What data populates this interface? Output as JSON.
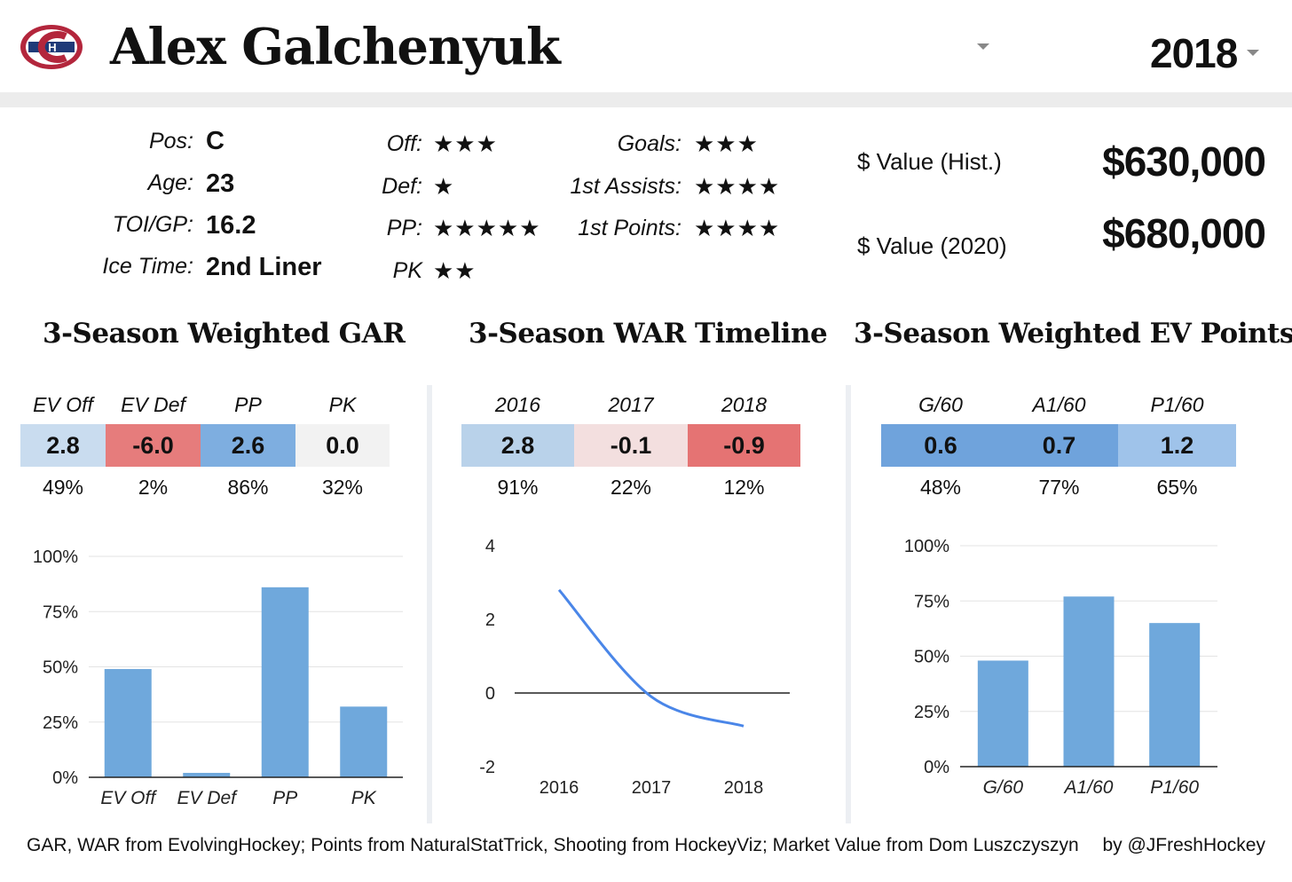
{
  "header": {
    "player_name": "Alex Galchenyuk",
    "season": "2018",
    "team_logo": "habs-logo"
  },
  "profile": {
    "pos_label": "Pos:",
    "pos": "C",
    "age_label": "Age:",
    "age": "23",
    "toi_label": "TOI/GP:",
    "toi": "16.2",
    "ice_label": "Ice Time:",
    "ice": "2nd Liner"
  },
  "ratings": {
    "off_label": "Off:",
    "off": "★★★",
    "def_label": "Def:",
    "def": "★",
    "pp_label": "PP:",
    "pp": "★★★★★",
    "pk_label": "PK",
    "pk": "★★",
    "goals_label": "Goals:",
    "goals": "★★★",
    "assists_label": "1st Assists:",
    "assists": "★★★★",
    "points_label": "1st Points:",
    "points": "★★★★"
  },
  "value": {
    "hist_label": "$ Value (Hist.)",
    "hist": "$630,000",
    "v2020_label": "$ Value (2020)",
    "v2020": "$680,000"
  },
  "sections": {
    "gar_title": "3-Season Weighted GAR",
    "war_title": "3-Season WAR Timeline",
    "ev_title": "3-Season Weighted EV Points"
  },
  "gar_table": {
    "cols": [
      {
        "head": "EV Off",
        "value": "2.8",
        "pct": "49%",
        "color": "#c9dcef"
      },
      {
        "head": "EV Def",
        "value": "-6.0",
        "pct": "2%",
        "color": "#e67c7c"
      },
      {
        "head": "PP",
        "value": "2.6",
        "pct": "86%",
        "color": "#7eaee0"
      },
      {
        "head": "PK",
        "value": "0.0",
        "pct": "32%",
        "color": "#f2f2f2"
      }
    ]
  },
  "war_table": {
    "cols": [
      {
        "head": "2016",
        "value": "2.8",
        "pct": "91%",
        "color": "#b9d2ea"
      },
      {
        "head": "2017",
        "value": "-0.1",
        "pct": "22%",
        "color": "#f3dfdf"
      },
      {
        "head": "2018",
        "value": "-0.9",
        "pct": "12%",
        "color": "#e57373"
      }
    ]
  },
  "ev_table": {
    "cols": [
      {
        "head": "G/60",
        "value": "0.6",
        "pct": "48%",
        "color": "#6fa3dc"
      },
      {
        "head": "A1/60",
        "value": "0.7",
        "pct": "77%",
        "color": "#6fa3dc"
      },
      {
        "head": "P1/60",
        "value": "1.2",
        "pct": "65%",
        "color": "#9fc3ea"
      }
    ]
  },
  "chart_data": [
    {
      "type": "bar",
      "categories": [
        "EV Off",
        "EV Def",
        "PP",
        "PK"
      ],
      "values": [
        49,
        2,
        86,
        32
      ],
      "yticks": [
        "0%",
        "25%",
        "50%",
        "75%",
        "100%"
      ],
      "ylim": [
        0,
        100
      ],
      "bar_color": "#6fa8dc",
      "grid": true
    },
    {
      "type": "line",
      "x": [
        "2016",
        "2017",
        "2018"
      ],
      "values": [
        2.8,
        -0.1,
        -0.9
      ],
      "yticks": [
        "-2",
        "0",
        "2",
        "4"
      ],
      "ylim": [
        -2,
        4
      ],
      "line_color": "#4a86e8",
      "grid": false
    },
    {
      "type": "bar",
      "categories": [
        "G/60",
        "A1/60",
        "P1/60"
      ],
      "values": [
        48,
        77,
        65
      ],
      "yticks": [
        "0%",
        "25%",
        "50%",
        "75%",
        "100%"
      ],
      "ylim": [
        0,
        100
      ],
      "bar_color": "#6fa8dc",
      "grid": true
    }
  ],
  "footer": {
    "credits": "GAR, WAR from EvolvingHockey; Points from NaturalStatTrick, Shooting from HockeyViz; Market Value from Dom Luszczyszyn",
    "byline": "by @JFreshHockey"
  }
}
